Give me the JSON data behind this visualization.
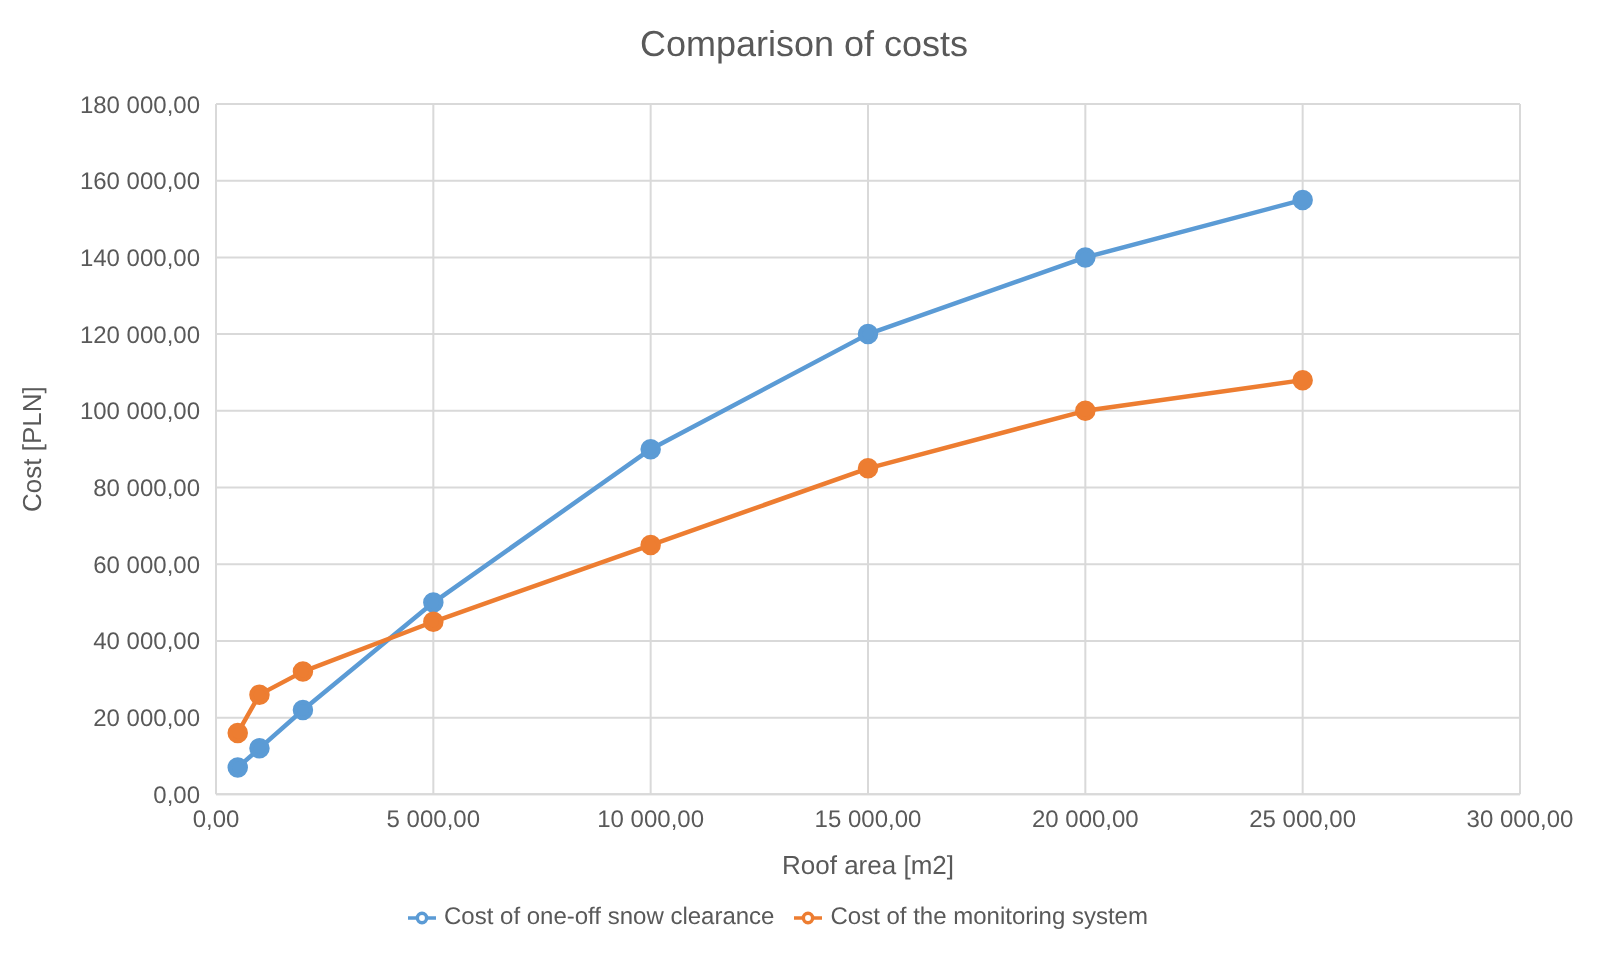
{
  "chart_data": {
    "type": "line",
    "title": "Comparison of costs",
    "xlabel": "Roof area [m2]",
    "ylabel": "Cost [PLN]",
    "x": [
      500,
      1000,
      2000,
      5000,
      10000,
      15000,
      20000,
      25000
    ],
    "series": [
      {
        "name": "Cost of one-off snow clearance",
        "color": "#5b9bd5",
        "values": [
          7000,
          12000,
          22000,
          50000,
          90000,
          120000,
          140000,
          155000
        ]
      },
      {
        "name": "Cost of the monitoring system",
        "color": "#ed7d31",
        "values": [
          16000,
          26000,
          32000,
          45000,
          65000,
          85000,
          100000,
          108000
        ]
      }
    ],
    "xlim": [
      0,
      30000
    ],
    "xticks": [
      {
        "value": 0,
        "label": "0,00"
      },
      {
        "value": 5000,
        "label": "5 000,00"
      },
      {
        "value": 10000,
        "label": "10 000,00"
      },
      {
        "value": 15000,
        "label": "15 000,00"
      },
      {
        "value": 20000,
        "label": "20 000,00"
      },
      {
        "value": 25000,
        "label": "25 000,00"
      },
      {
        "value": 30000,
        "label": "30 000,00"
      }
    ],
    "ylim": [
      0,
      180000
    ],
    "yticks": [
      {
        "value": 0,
        "label": "0,00"
      },
      {
        "value": 20000,
        "label": "20 000,00"
      },
      {
        "value": 40000,
        "label": "40 000,00"
      },
      {
        "value": 60000,
        "label": "60 000,00"
      },
      {
        "value": 80000,
        "label": "80 000,00"
      },
      {
        "value": 100000,
        "label": "100 000,00"
      },
      {
        "value": 120000,
        "label": "120 000,00"
      },
      {
        "value": 140000,
        "label": "140 000,00"
      },
      {
        "value": 160000,
        "label": "160 000,00"
      },
      {
        "value": 180000,
        "label": "180 000,00"
      }
    ],
    "grid": true,
    "legend": "bottom",
    "marker": "circle",
    "line_style": "solid"
  }
}
